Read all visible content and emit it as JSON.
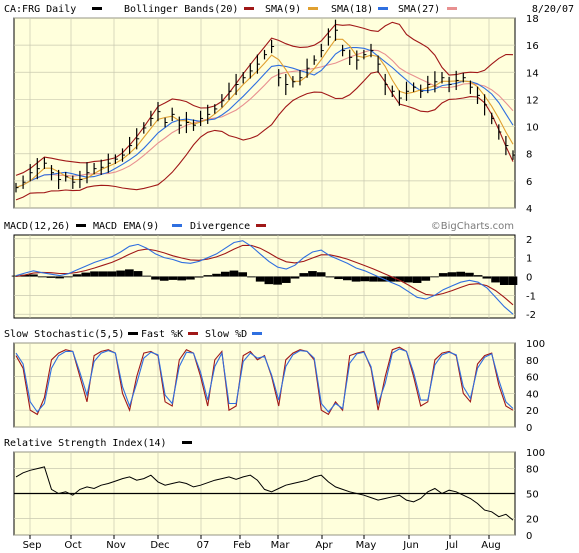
{
  "chart_data": [
    {
      "type": "line",
      "panel": "price",
      "header": [
        {
          "text": "CA:FRG Daily",
          "swatch": "#000000"
        },
        {
          "text": "Bollinger Bands(20)",
          "swatch": "#a01818"
        },
        {
          "text": "SMA(9)",
          "swatch": "#e0a030"
        },
        {
          "text": "SMA(18)",
          "swatch": "#2f6fe0"
        },
        {
          "text": "SMA(27)",
          "swatch": "#e89090"
        }
      ],
      "date": "8/20/07",
      "ylim": [
        4,
        18
      ],
      "yticks": [
        4,
        6,
        8,
        10,
        12,
        14,
        16,
        18
      ],
      "xticks": [
        "Sep",
        "Oct",
        "Nov",
        "Dec",
        "07",
        "Feb",
        "Mar",
        "Apr",
        "May",
        "Jun",
        "Jul",
        "Aug"
      ],
      "grid": true,
      "colors": {
        "price": "#000000",
        "bb": "#a01818",
        "sma9": "#e0a030",
        "sma18": "#2f6fe0",
        "sma27": "#e89090"
      },
      "series": [
        {
          "key": "price",
          "values": [
            5.5,
            5.9,
            6.6,
            6.9,
            7.3,
            6.6,
            6.1,
            6.3,
            5.9,
            6.1,
            6.6,
            6.9,
            7.0,
            7.3,
            7.6,
            7.9,
            8.6,
            9.1,
            9.9,
            10.6,
            11.1,
            10.3,
            10.9,
            10.1,
            10.3,
            10.1,
            10.6,
            10.9,
            11.3,
            11.9,
            12.6,
            13.1,
            13.6,
            14.1,
            14.6,
            15.3,
            15.9,
            13.6,
            13.1,
            13.3,
            13.6,
            14.3,
            14.9,
            15.6,
            16.6,
            17.1,
            15.6,
            15.1,
            14.9,
            15.3,
            15.6,
            14.6,
            13.1,
            12.6,
            12.1,
            12.6,
            12.9,
            12.6,
            13.1,
            13.3,
            13.6,
            13.1,
            13.4,
            13.6,
            12.9,
            12.3,
            11.6,
            10.6,
            9.6,
            8.6,
            7.9
          ]
        }
      ]
    },
    {
      "type": "line",
      "panel": "macd",
      "header": [
        {
          "text": "MACD(12,26)",
          "swatch": "#000000"
        },
        {
          "text": "MACD EMA(9)",
          "swatch": "#2f6fe0"
        },
        {
          "text": "Divergence",
          "swatch": "#a01818"
        }
      ],
      "watermark": "©BigCharts.com",
      "ylim": [
        -2.2,
        2.2
      ],
      "yticks": [
        2,
        1,
        0,
        -1,
        -2
      ],
      "grid": true,
      "colors": {
        "macd": "#2f6fe0",
        "signal": "#a01818",
        "hist": "#000000"
      },
      "series": [
        {
          "key": "macd",
          "values": [
            0.05,
            0.18,
            0.3,
            0.2,
            0.12,
            0.05,
            0.15,
            0.35,
            0.55,
            0.75,
            0.9,
            1.05,
            1.3,
            1.6,
            1.7,
            1.5,
            1.2,
            1.0,
            0.9,
            0.75,
            0.7,
            0.8,
            1.0,
            1.2,
            1.5,
            1.8,
            1.9,
            1.6,
            1.2,
            0.8,
            0.5,
            0.4,
            0.6,
            1.0,
            1.3,
            1.4,
            1.1,
            0.9,
            0.7,
            0.45,
            0.3,
            0.1,
            -0.1,
            -0.3,
            -0.5,
            -0.8,
            -1.1,
            -1.2,
            -1.0,
            -0.7,
            -0.5,
            -0.3,
            -0.2,
            -0.3,
            -0.6,
            -1.1,
            -1.6,
            -2.0
          ]
        },
        {
          "key": "signal",
          "values": [
            0.0,
            0.08,
            0.18,
            0.22,
            0.2,
            0.16,
            0.16,
            0.22,
            0.32,
            0.45,
            0.6,
            0.75,
            0.95,
            1.18,
            1.38,
            1.45,
            1.38,
            1.25,
            1.1,
            0.98,
            0.88,
            0.86,
            0.92,
            1.04,
            1.22,
            1.45,
            1.65,
            1.65,
            1.5,
            1.25,
            0.98,
            0.78,
            0.72,
            0.8,
            0.98,
            1.15,
            1.15,
            1.05,
            0.92,
            0.75,
            0.58,
            0.4,
            0.2,
            0.0,
            -0.2,
            -0.45,
            -0.72,
            -0.95,
            -1.0,
            -0.9,
            -0.75,
            -0.58,
            -0.42,
            -0.38,
            -0.48,
            -0.75,
            -1.1,
            -1.5
          ]
        }
      ]
    },
    {
      "type": "line",
      "panel": "stochastic",
      "header": [
        {
          "text": "Slow Stochastic(5,5)",
          "swatch": "#000000"
        },
        {
          "text": "Fast %K",
          "swatch": "#a01818"
        },
        {
          "text": "Slow %D",
          "swatch": "#2f6fe0"
        }
      ],
      "ylim": [
        0,
        100
      ],
      "yticks": [
        100,
        80,
        60,
        40,
        20,
        0
      ],
      "grid": true,
      "colors": {
        "k": "#a01818",
        "d": "#2f6fe0"
      },
      "series": [
        {
          "key": "k",
          "values": [
            85,
            70,
            20,
            15,
            35,
            80,
            88,
            92,
            90,
            60,
            30,
            85,
            90,
            92,
            88,
            40,
            20,
            60,
            88,
            90,
            85,
            30,
            25,
            80,
            92,
            88,
            60,
            25,
            80,
            90,
            20,
            25,
            85,
            90,
            80,
            85,
            60,
            25,
            80,
            88,
            92,
            90,
            80,
            20,
            15,
            30,
            20,
            85,
            88,
            90,
            70,
            20,
            60,
            92,
            95,
            90,
            60,
            25,
            30,
            80,
            88,
            90,
            85,
            40,
            30,
            75,
            85,
            88,
            50,
            25,
            20
          ]
        },
        {
          "key": "d",
          "values": [
            88,
            75,
            30,
            18,
            28,
            70,
            85,
            90,
            90,
            65,
            38,
            78,
            88,
            91,
            88,
            48,
            25,
            52,
            82,
            89,
            86,
            38,
            28,
            72,
            89,
            88,
            65,
            32,
            72,
            88,
            28,
            28,
            78,
            88,
            82,
            84,
            62,
            32,
            72,
            86,
            91,
            90,
            82,
            28,
            18,
            28,
            22,
            76,
            87,
            89,
            72,
            28,
            52,
            88,
            93,
            90,
            65,
            32,
            32,
            74,
            86,
            89,
            86,
            48,
            34,
            70,
            83,
            87,
            56,
            30,
            22
          ]
        }
      ]
    },
    {
      "type": "line",
      "panel": "rsi",
      "header": [
        {
          "text": "Relative Strength Index(14)",
          "swatch": "#000000"
        }
      ],
      "ylim": [
        0,
        100
      ],
      "yticks": [
        100,
        80,
        50,
        20,
        0
      ],
      "midline": 50,
      "grid": true,
      "colors": {
        "rsi": "#000000"
      },
      "series": [
        {
          "key": "rsi",
          "values": [
            70,
            75,
            78,
            80,
            82,
            55,
            50,
            52,
            48,
            55,
            58,
            56,
            60,
            62,
            65,
            68,
            70,
            66,
            68,
            72,
            64,
            60,
            62,
            64,
            62,
            58,
            60,
            63,
            66,
            68,
            70,
            67,
            70,
            72,
            66,
            55,
            52,
            56,
            60,
            62,
            64,
            66,
            70,
            72,
            64,
            58,
            55,
            52,
            50,
            48,
            45,
            42,
            44,
            46,
            48,
            42,
            40,
            44,
            52,
            56,
            50,
            54,
            52,
            48,
            44,
            38,
            30,
            28,
            22,
            25,
            18
          ]
        }
      ]
    }
  ]
}
